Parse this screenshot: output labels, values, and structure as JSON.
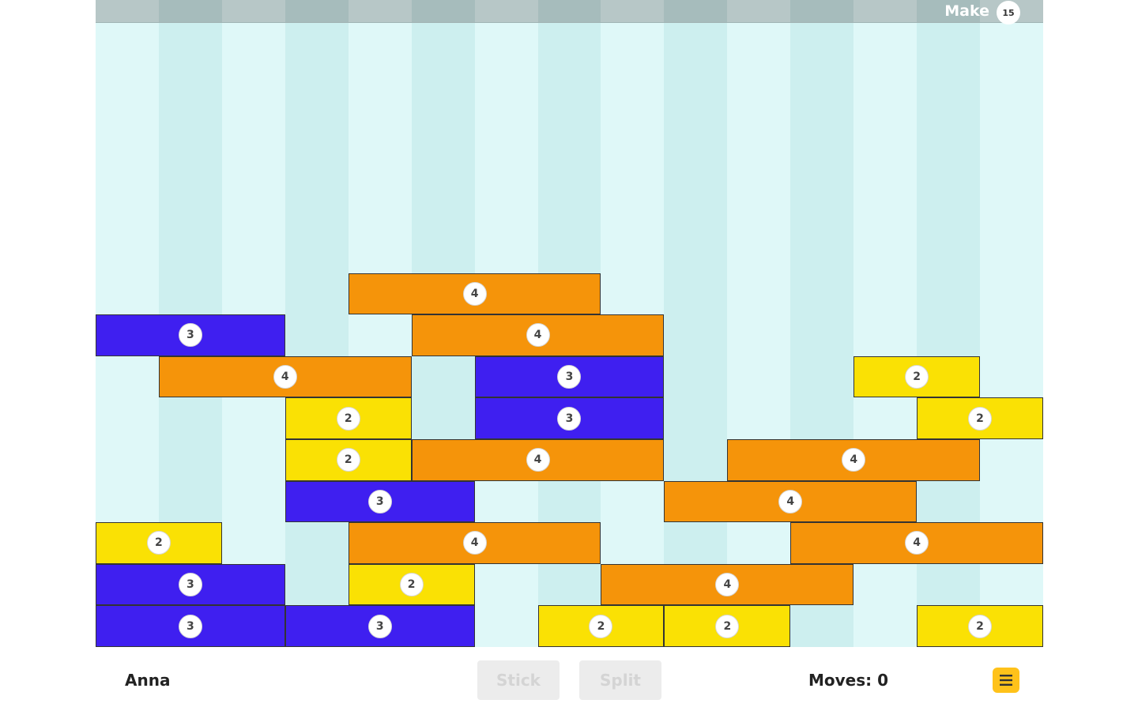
{
  "game": {
    "target_label": "Make",
    "target_value": "15",
    "columns": 15,
    "rows": 9,
    "colors": {
      "col_light": "#dff8f8",
      "col_dark": "#cdefef",
      "bar_light": "#b7c7c7",
      "bar_dark": "#a6bcbc",
      "block_2": "#fae104",
      "block_3": "#3f1ff0",
      "block_4": "#f5940a"
    },
    "blocks": [
      {
        "row": 1,
        "col": 4,
        "len": 4,
        "value": "4"
      },
      {
        "row": 2,
        "col": 0,
        "len": 3,
        "value": "3"
      },
      {
        "row": 2,
        "col": 5,
        "len": 4,
        "value": "4"
      },
      {
        "row": 3,
        "col": 1,
        "len": 4,
        "value": "4"
      },
      {
        "row": 3,
        "col": 6,
        "len": 3,
        "value": "3"
      },
      {
        "row": 3,
        "col": 12,
        "len": 2,
        "value": "2"
      },
      {
        "row": 4,
        "col": 3,
        "len": 2,
        "value": "2"
      },
      {
        "row": 4,
        "col": 6,
        "len": 3,
        "value": "3"
      },
      {
        "row": 4,
        "col": 13,
        "len": 2,
        "value": "2"
      },
      {
        "row": 5,
        "col": 3,
        "len": 2,
        "value": "2"
      },
      {
        "row": 5,
        "col": 5,
        "len": 4,
        "value": "4"
      },
      {
        "row": 5,
        "col": 10,
        "len": 4,
        "value": "4"
      },
      {
        "row": 6,
        "col": 3,
        "len": 3,
        "value": "3"
      },
      {
        "row": 6,
        "col": 9,
        "len": 4,
        "value": "4"
      },
      {
        "row": 7,
        "col": 0,
        "len": 2,
        "value": "2"
      },
      {
        "row": 7,
        "col": 4,
        "len": 4,
        "value": "4"
      },
      {
        "row": 7,
        "col": 11,
        "len": 4,
        "value": "4"
      },
      {
        "row": 8,
        "col": 0,
        "len": 3,
        "value": "3"
      },
      {
        "row": 8,
        "col": 4,
        "len": 2,
        "value": "2"
      },
      {
        "row": 8,
        "col": 8,
        "len": 4,
        "value": "4"
      },
      {
        "row": 9,
        "col": 0,
        "len": 3,
        "value": "3"
      },
      {
        "row": 9,
        "col": 3,
        "len": 3,
        "value": "3"
      },
      {
        "row": 9,
        "col": 7,
        "len": 2,
        "value": "2"
      },
      {
        "row": 9,
        "col": 9,
        "len": 2,
        "value": "2"
      },
      {
        "row": 9,
        "col": 13,
        "len": 2,
        "value": "2"
      }
    ]
  },
  "footer": {
    "player_name": "Anna",
    "stick_label": "Stick",
    "split_label": "Split",
    "moves_text": "Moves: 0",
    "menu_icon": "hamburger-icon"
  }
}
